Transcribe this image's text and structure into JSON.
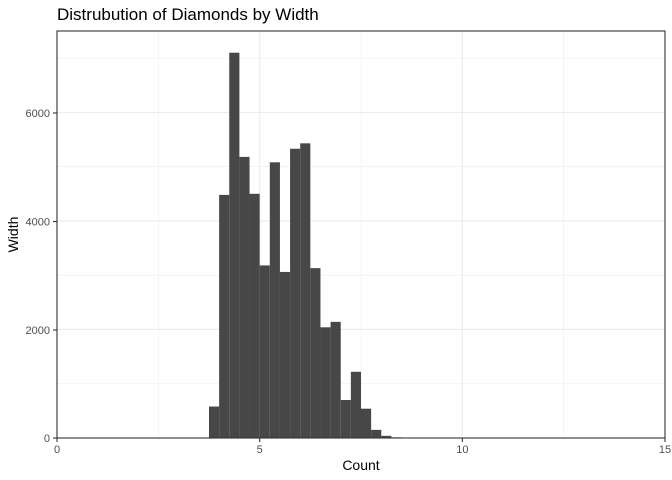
{
  "chart_data": {
    "type": "bar",
    "title": "Distrubution of Diamonds by Width",
    "xlabel": "Count",
    "ylabel": "Width",
    "xlim": [
      0,
      15
    ],
    "ylim": [
      0,
      7500
    ],
    "xticks": [
      "0",
      "5",
      "10",
      "15"
    ],
    "yticks": [
      "0",
      "2000",
      "4000",
      "6000"
    ],
    "grid": true,
    "bin_width": 0.25,
    "bins": [
      {
        "x0": 3.75,
        "count": 580
      },
      {
        "x0": 4.0,
        "count": 4480
      },
      {
        "x0": 4.25,
        "count": 7100
      },
      {
        "x0": 4.5,
        "count": 5180
      },
      {
        "x0": 4.75,
        "count": 4500
      },
      {
        "x0": 5.0,
        "count": 3180
      },
      {
        "x0": 5.25,
        "count": 5080
      },
      {
        "x0": 5.5,
        "count": 3060
      },
      {
        "x0": 5.75,
        "count": 5330
      },
      {
        "x0": 6.0,
        "count": 5430
      },
      {
        "x0": 6.25,
        "count": 3130
      },
      {
        "x0": 6.5,
        "count": 2040
      },
      {
        "x0": 6.75,
        "count": 2140
      },
      {
        "x0": 7.0,
        "count": 700
      },
      {
        "x0": 7.25,
        "count": 1220
      },
      {
        "x0": 7.5,
        "count": 540
      },
      {
        "x0": 7.75,
        "count": 150
      },
      {
        "x0": 8.0,
        "count": 40
      },
      {
        "x0": 8.25,
        "count": 12
      }
    ]
  }
}
